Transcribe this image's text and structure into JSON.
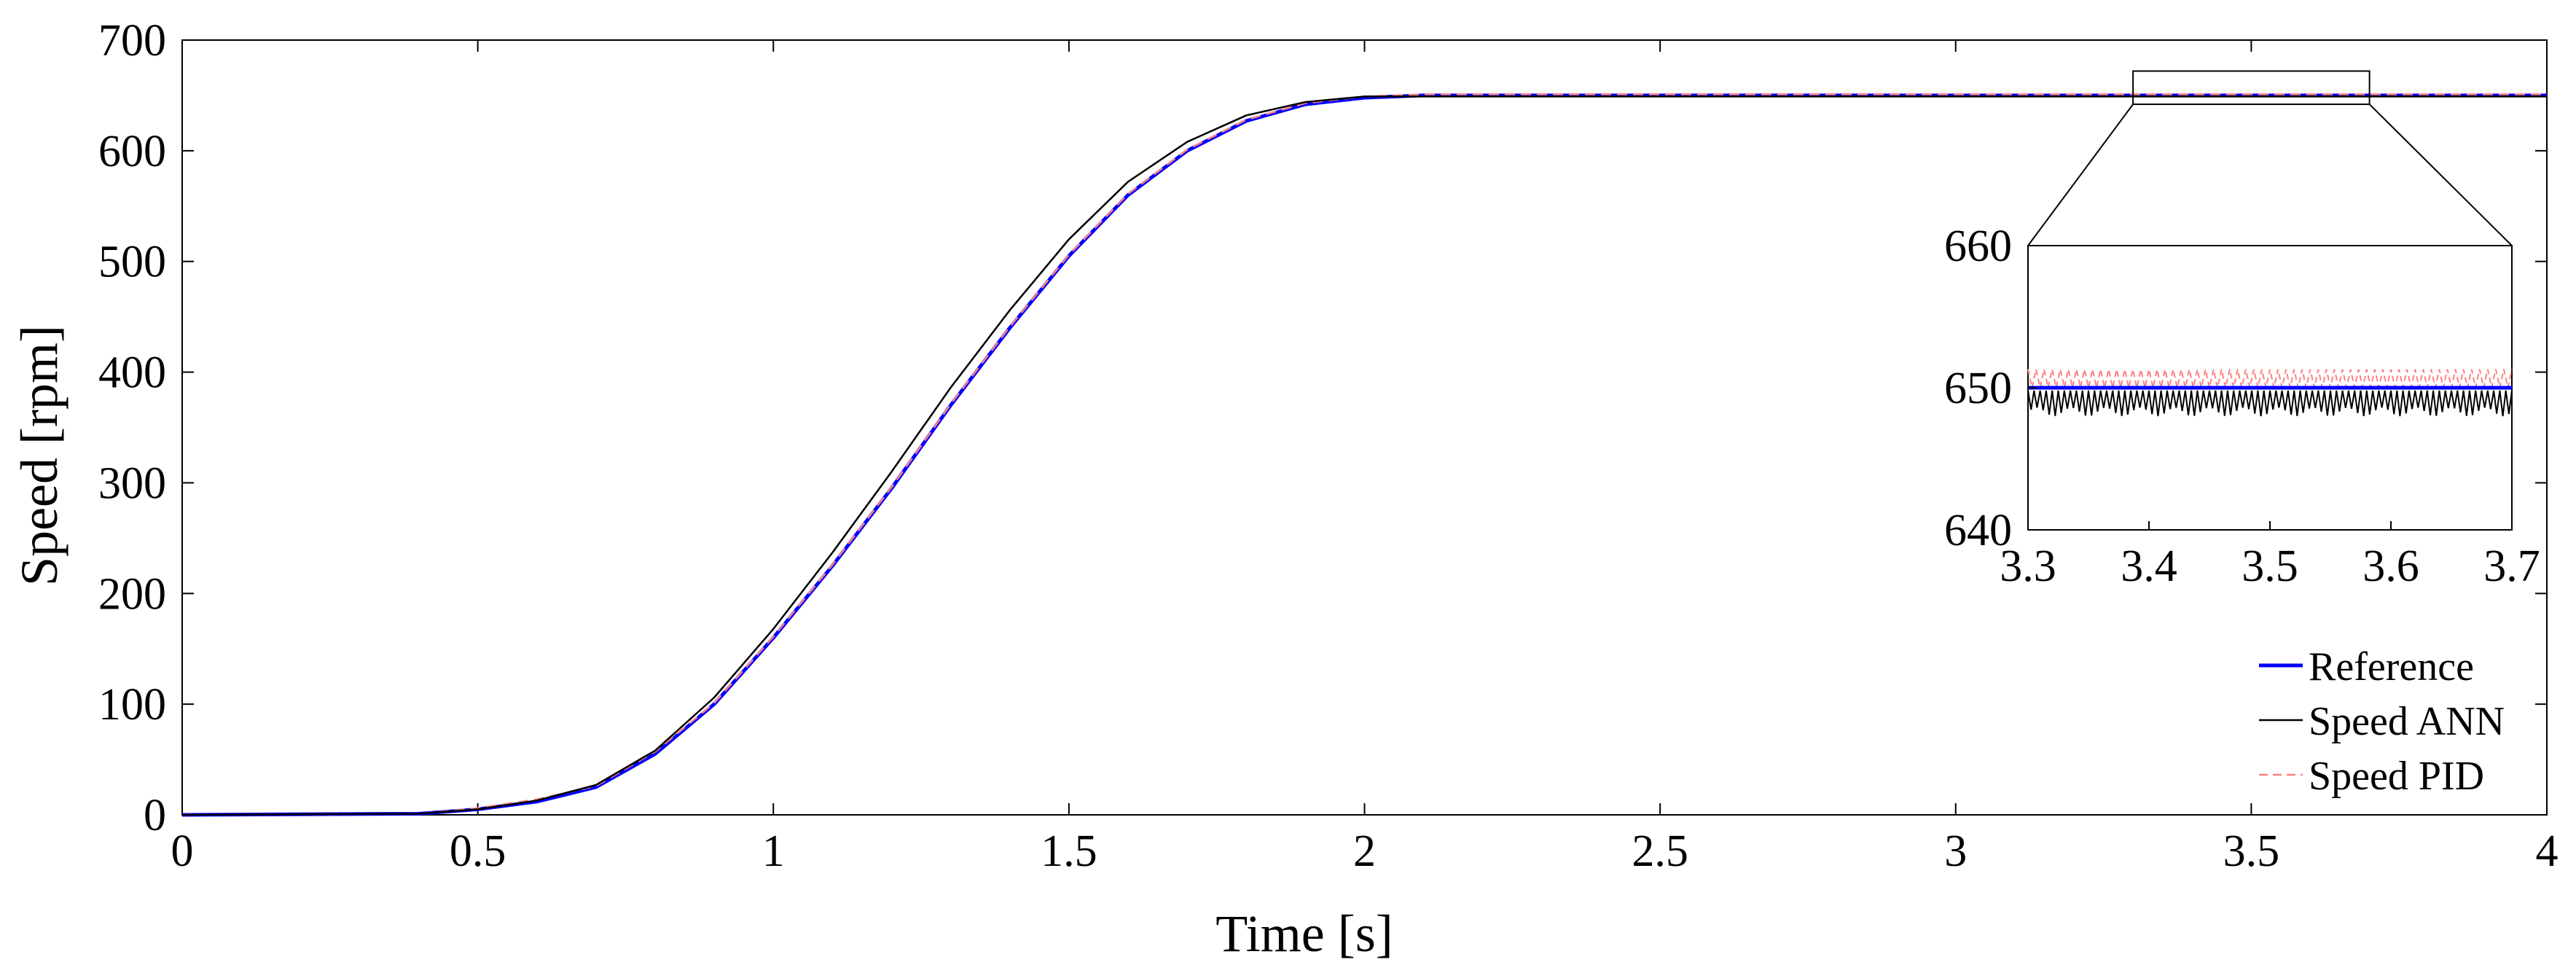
{
  "chart_data": {
    "type": "line",
    "xlabel": "Time [s]",
    "ylabel": "Speed [rpm]",
    "xlim": [
      0,
      4
    ],
    "ylim": [
      0,
      700
    ],
    "xticks": [
      "0",
      "0.5",
      "1",
      "1.5",
      "2",
      "2.5",
      "3",
      "3.5",
      "4"
    ],
    "yticks": [
      "0",
      "100",
      "200",
      "300",
      "400",
      "500",
      "600",
      "700"
    ],
    "grid": false,
    "legend_position": "bottom-right",
    "series": [
      {
        "name": "Reference",
        "color": "#0000ff",
        "style": "solid",
        "x": [
          0,
          0.4,
          0.5,
          0.6,
          0.7,
          0.8,
          0.9,
          1.0,
          1.1,
          1.2,
          1.3,
          1.4,
          1.5,
          1.6,
          1.7,
          1.8,
          1.9,
          2.0,
          2.1,
          2.2,
          2.5,
          3.0,
          3.5,
          4.0
        ],
        "y": [
          0,
          1,
          5,
          12,
          25,
          55,
          100,
          160,
          225,
          295,
          370,
          440,
          505,
          560,
          600,
          627,
          642,
          648,
          650,
          650,
          650,
          650,
          650,
          650
        ]
      },
      {
        "name": "Speed ANN",
        "color": "#000000",
        "style": "solid",
        "x": [
          0,
          0.4,
          0.5,
          0.6,
          0.7,
          0.8,
          0.9,
          1.0,
          1.1,
          1.2,
          1.3,
          1.4,
          1.5,
          1.6,
          1.7,
          1.8,
          1.9,
          2.0,
          2.1,
          2.2,
          2.5,
          3.0,
          3.5,
          4.0
        ],
        "y": [
          0,
          1,
          5,
          13,
          27,
          58,
          106,
          168,
          237,
          310,
          386,
          456,
          520,
          572,
          608,
          632,
          644,
          649,
          649,
          649,
          649,
          649,
          649,
          649
        ]
      },
      {
        "name": "Speed PID",
        "color": "#ff8080",
        "style": "dashed",
        "x": [
          0,
          0.4,
          0.5,
          0.6,
          0.7,
          0.8,
          0.9,
          1.0,
          1.1,
          1.2,
          1.3,
          1.4,
          1.5,
          1.6,
          1.7,
          1.8,
          1.9,
          2.0,
          2.1,
          2.2,
          2.5,
          3.0,
          3.5,
          4.0
        ],
        "y": [
          0,
          1,
          6,
          14,
          26,
          57,
          101,
          161,
          226,
          296,
          371,
          441,
          506,
          561,
          601,
          628,
          643,
          649,
          651,
          651,
          651,
          651,
          651,
          651
        ]
      }
    ],
    "inset": {
      "xlim": [
        3.3,
        3.7
      ],
      "ylim": [
        640,
        660
      ],
      "xticks": [
        "3.3",
        "3.4",
        "3.5",
        "3.6",
        "3.7"
      ],
      "yticks": [
        "640",
        "650",
        "660"
      ],
      "reference_level": 650,
      "ann_band": [
        648,
        650
      ],
      "pid_band": [
        650,
        651.3
      ]
    }
  }
}
